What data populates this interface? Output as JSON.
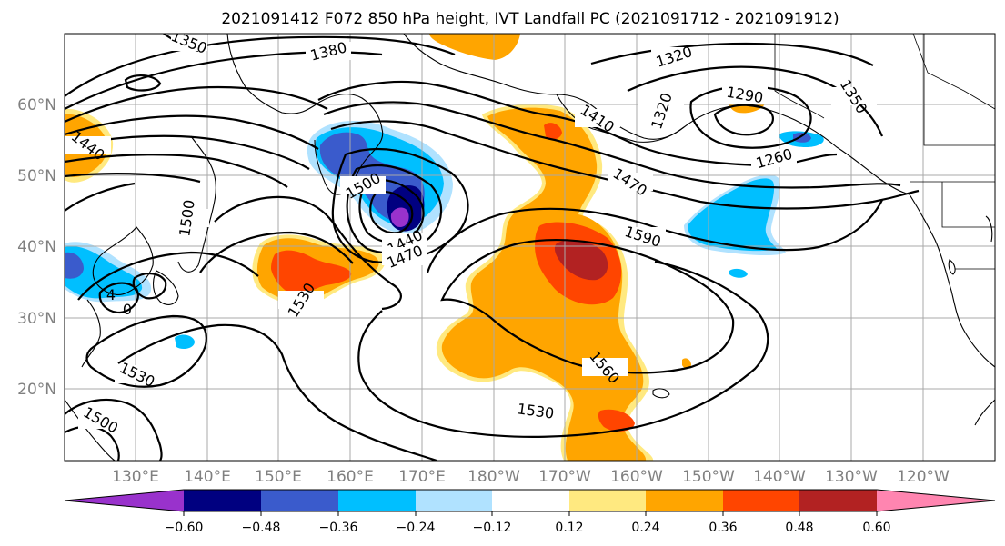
{
  "title": "2021091412 F072 850 hPa height, IVT Landfall PC (2021091712 - 2021091912)",
  "map": {
    "lat_range": [
      10,
      70
    ],
    "lon_range": [
      120,
      250
    ],
    "lat_labels": [
      "20°N",
      "30°N",
      "40°N",
      "50°N",
      "60°N"
    ],
    "lon_labels": [
      "130°E",
      "140°E",
      "150°E",
      "160°E",
      "170°E",
      "180°W",
      "170°W",
      "160°W",
      "150°W",
      "140°W",
      "130°W",
      "120°W"
    ],
    "contour_labels": [
      "1350",
      "1380",
      "1320",
      "1290",
      "1350",
      "1410",
      "1320",
      "1440",
      "1500",
      "1260",
      "1470",
      "1500",
      "1440",
      "1470",
      "1590",
      "1530",
      "1560",
      "1530",
      "1530",
      "1500",
      "0",
      "4"
    ]
  },
  "colorbar": {
    "ticks": [
      "−0.60",
      "−0.48",
      "−0.36",
      "−0.24",
      "−0.12",
      "0.12",
      "0.24",
      "0.36",
      "0.48",
      "0.60"
    ],
    "colors": [
      "#9932cc",
      "#000080",
      "#3a5bcc",
      "#00bfff",
      "#b0e2ff",
      "#ffffff",
      "#ffe980",
      "#ffa500",
      "#ff4500",
      "#b22222",
      "#ff85b0"
    ]
  },
  "fill_colors": {
    "neg_1": "#b0e2ff",
    "neg_2": "#00bfff",
    "neg_3": "#3a5bcc",
    "neg_4": "#000080",
    "neg_5": "#9932cc",
    "pos_1": "#ffe980",
    "pos_2": "#ffa500",
    "pos_3": "#ff4500",
    "pos_4": "#b22222"
  }
}
